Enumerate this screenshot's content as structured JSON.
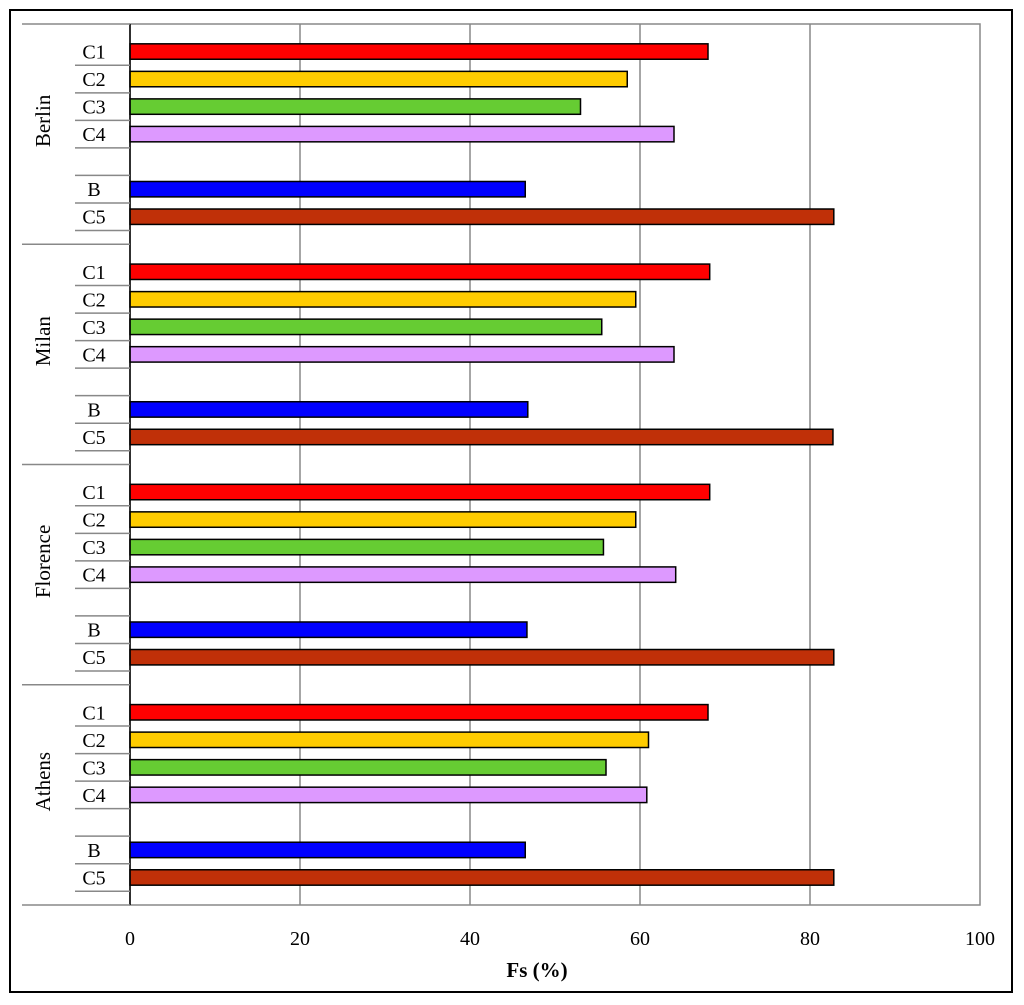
{
  "chart_data": {
    "type": "bar",
    "orientation": "horizontal",
    "xlabel": "Fs (%)",
    "xlim": [
      0,
      100
    ],
    "xticks": [
      "0",
      "20",
      "40",
      "60",
      "80",
      "100"
    ],
    "grid": "vertical",
    "legend": "none",
    "categories": [
      "C1",
      "C2",
      "C3",
      "C4",
      "",
      "B",
      "C5"
    ],
    "colors": {
      "C1": "#ff0000",
      "C2": "#ffcc00",
      "C3": "#66cc33",
      "C4": "#dd99ff",
      "B": "#0000ff",
      "C5": "#c03008"
    },
    "groups": [
      {
        "name": "Berlin",
        "values": {
          "C1": 68.0,
          "C2": 58.5,
          "C3": 53.0,
          "C4": 64.0,
          "B": 46.5,
          "C5": 82.8
        }
      },
      {
        "name": "Milan",
        "values": {
          "C1": 68.2,
          "C2": 59.5,
          "C3": 55.5,
          "C4": 64.0,
          "B": 46.8,
          "C5": 82.7
        }
      },
      {
        "name": "Florence",
        "values": {
          "C1": 68.2,
          "C2": 59.5,
          "C3": 55.7,
          "C4": 64.2,
          "B": 46.7,
          "C5": 82.8
        }
      },
      {
        "name": "Athens",
        "values": {
          "C1": 68.0,
          "C2": 61.0,
          "C3": 56.0,
          "C4": 60.8,
          "B": 46.5,
          "C5": 82.8
        }
      }
    ]
  }
}
